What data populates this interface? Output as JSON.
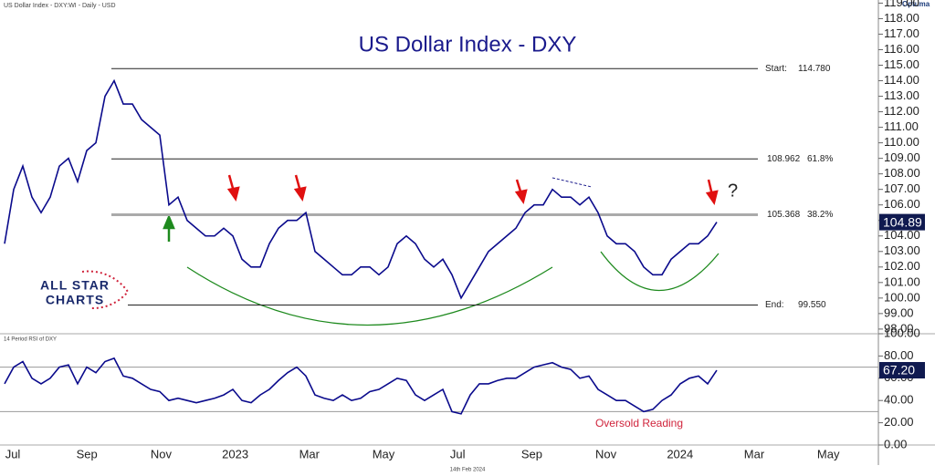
{
  "header": "US Dollar Index - DXY:WI - Daily - USD",
  "brand": "Optuma",
  "logo": [
    "ALL STAR",
    "CHARTS"
  ],
  "date_footer": "14th Feb 2024",
  "chart_data": [
    {
      "type": "line",
      "title": "US Dollar Index - DXY",
      "ylim": [
        97.7,
        119.2
      ],
      "yticks": [
        {
          "value": 98,
          "label": "98.00"
        },
        {
          "value": 99,
          "label": "99.00"
        },
        {
          "value": 100,
          "label": "100.00"
        },
        {
          "value": 101,
          "label": "101.00"
        },
        {
          "value": 102,
          "label": "102.00"
        },
        {
          "value": 103,
          "label": "103.00"
        },
        {
          "value": 104,
          "label": "104.00"
        },
        {
          "value": 105,
          "label": "105.00"
        },
        {
          "value": 106,
          "label": "106.00"
        },
        {
          "value": 107,
          "label": "107.00"
        },
        {
          "value": 108,
          "label": "108.00"
        },
        {
          "value": 109,
          "label": "109.00"
        },
        {
          "value": 110,
          "label": "110.00"
        },
        {
          "value": 111,
          "label": "111.00"
        },
        {
          "value": 112,
          "label": "112.00"
        },
        {
          "value": 113,
          "label": "113.00"
        },
        {
          "value": 114,
          "label": "114.00"
        },
        {
          "value": 115,
          "label": "115.00"
        },
        {
          "value": 116,
          "label": "116.00"
        },
        {
          "value": 117,
          "label": "117.00"
        },
        {
          "value": 118,
          "label": "118.00"
        },
        {
          "value": 119,
          "label": "119.00"
        }
      ],
      "series": [
        {
          "name": "DXY",
          "color": "#0a0a8c",
          "values": [
            103.5,
            107,
            108.5,
            106.5,
            105.5,
            106.5,
            108.5,
            109,
            107.5,
            109.5,
            110,
            113,
            114,
            112.5,
            112.5,
            111.5,
            111,
            110.5,
            106,
            106.5,
            105,
            104.5,
            104,
            104,
            104.5,
            104,
            102.5,
            102,
            102,
            103.5,
            104.5,
            105,
            105,
            105.5,
            103,
            102.5,
            102,
            101.5,
            101.5,
            102,
            102,
            101.5,
            102,
            103.5,
            104,
            103.5,
            102.5,
            102,
            102.5,
            101.5,
            100,
            101,
            102,
            103,
            103.5,
            104,
            104.5,
            105.5,
            106,
            106,
            107,
            106.5,
            106.5,
            106,
            106.5,
            105.5,
            104,
            103.5,
            103.5,
            103,
            102,
            101.5,
            101.5,
            102.5,
            103,
            103.5,
            103.5,
            104,
            104.89
          ],
          "last_label": "104.89"
        }
      ],
      "levels": [
        {
          "label": "Start:",
          "value": 114.78,
          "value_label": "114.780"
        },
        {
          "value": 108.962,
          "value_label": "108.962",
          "pct": "61.8%"
        },
        {
          "value": 105.368,
          "value_label": "105.368",
          "pct": "38.2%"
        },
        {
          "label": "End:",
          "value": 99.55,
          "value_label": "99.550"
        }
      ],
      "annotation": "?"
    },
    {
      "type": "line",
      "title": "14 Period RSI of DXY",
      "ylim": [
        0,
        100
      ],
      "yticks": [
        {
          "value": 0,
          "label": "0.00"
        },
        {
          "value": 20,
          "label": "20.00"
        },
        {
          "value": 40,
          "label": "40.00"
        },
        {
          "value": 60,
          "label": "60.00"
        },
        {
          "value": 80,
          "label": "80.00"
        },
        {
          "value": 100,
          "label": "100.00"
        }
      ],
      "bands": [
        70,
        30
      ],
      "series": [
        {
          "name": "RSI",
          "color": "#0a0a8c",
          "values": [
            55,
            70,
            75,
            60,
            55,
            60,
            70,
            72,
            55,
            70,
            65,
            75,
            78,
            62,
            60,
            55,
            50,
            48,
            40,
            42,
            40,
            38,
            40,
            42,
            45,
            50,
            40,
            38,
            45,
            50,
            58,
            65,
            70,
            62,
            45,
            42,
            40,
            45,
            40,
            42,
            48,
            50,
            55,
            60,
            58,
            45,
            40,
            45,
            50,
            30,
            28,
            45,
            55,
            55,
            58,
            60,
            60,
            65,
            70,
            72,
            74,
            70,
            68,
            60,
            62,
            50,
            45,
            40,
            40,
            35,
            30,
            32,
            40,
            45,
            55,
            60,
            62,
            55,
            67.2
          ],
          "last_label": "67.20"
        }
      ],
      "annotation": "Oversold Reading",
      "x_labels": [
        "Jul",
        "Sep",
        "Nov",
        "2023",
        "Mar",
        "May",
        "Jul",
        "Sep",
        "Nov",
        "2024",
        "Mar",
        "May"
      ]
    }
  ]
}
